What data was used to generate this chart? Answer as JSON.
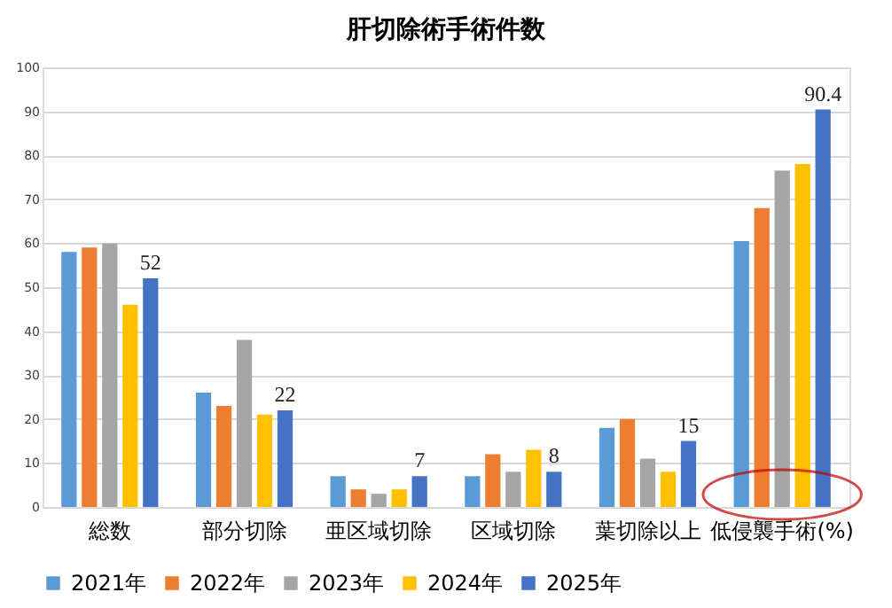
{
  "chart_data": {
    "type": "bar",
    "title": "肝切除術手術件数",
    "categories": [
      "総数",
      "部分切除",
      "亜区域切除",
      "区域切除",
      "葉切除以上",
      "低侵襲手術(%)"
    ],
    "series": [
      {
        "name": "2021年",
        "color": "#5b9bd5",
        "values": [
          58,
          26,
          7,
          7,
          18,
          60.5
        ]
      },
      {
        "name": "2022年",
        "color": "#ed7d31",
        "values": [
          59,
          23,
          4,
          12,
          20,
          68
        ]
      },
      {
        "name": "2023年",
        "color": "#a5a5a5",
        "values": [
          60,
          38,
          3,
          8,
          11,
          76.5
        ]
      },
      {
        "name": "2024年",
        "color": "#ffc000",
        "values": [
          46,
          21,
          4,
          13,
          8,
          78
        ]
      },
      {
        "name": "2025年",
        "color": "#4472c4",
        "values": [
          52,
          22,
          7,
          8,
          15,
          90.4
        ],
        "value_labels": [
          "52",
          "22",
          "7",
          "8",
          "15",
          "90.4"
        ]
      }
    ],
    "ylim": [
      0,
      100
    ],
    "yticks": [
      0,
      10,
      20,
      30,
      40,
      50,
      60,
      70,
      80,
      90,
      100
    ],
    "grid": "y",
    "legend": "bottom"
  }
}
